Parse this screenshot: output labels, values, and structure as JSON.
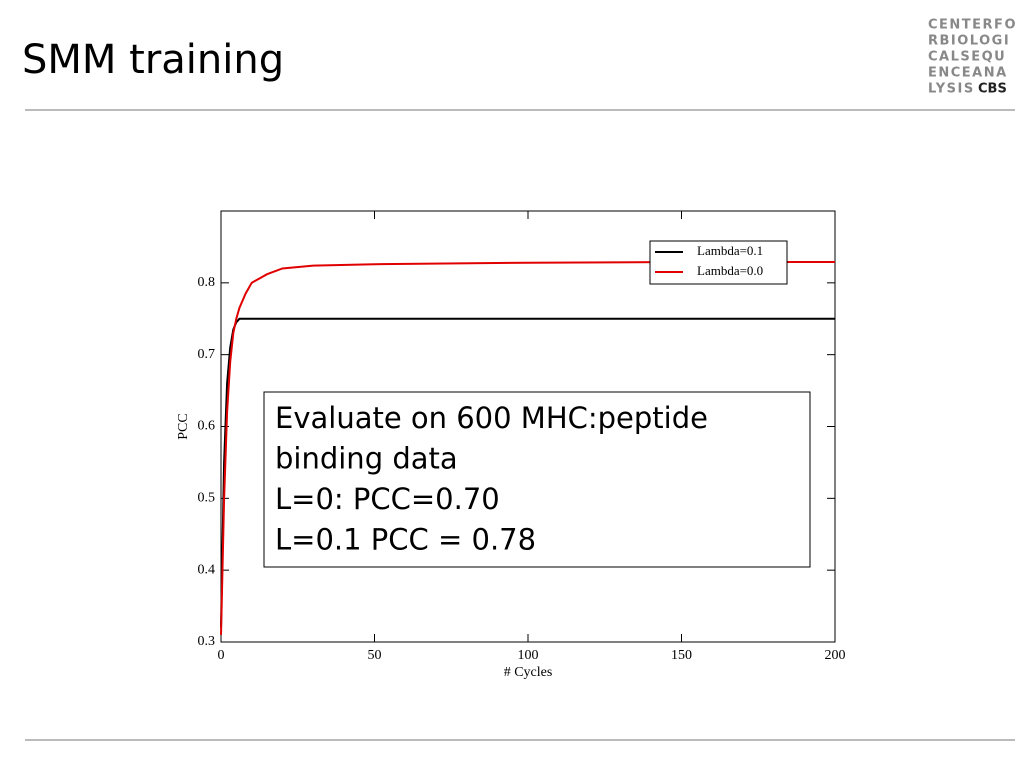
{
  "slide": {
    "title": "SMM training",
    "logo": {
      "lines": [
        "CENTERFO",
        "RBIOLOGI",
        "CALSEQU",
        "ENCEANA",
        "LYSIS"
      ],
      "mark": "CBS"
    }
  },
  "chart_data": {
    "type": "line",
    "x_label": "# Cycles",
    "y_label": "PCC",
    "x": [
      0,
      1,
      2,
      3,
      4,
      5,
      6,
      8,
      10,
      15,
      20,
      30,
      50,
      100,
      150,
      200
    ],
    "series": [
      {
        "name": "Lambda=0.1",
        "color": "#000000",
        "values": [
          0.32,
          0.55,
          0.66,
          0.71,
          0.735,
          0.745,
          0.75,
          0.75,
          0.75,
          0.75,
          0.75,
          0.75,
          0.75,
          0.75,
          0.75,
          0.75
        ]
      },
      {
        "name": "Lambda=0.0",
        "color": "#e00000",
        "values": [
          0.31,
          0.5,
          0.62,
          0.69,
          0.73,
          0.75,
          0.765,
          0.785,
          0.8,
          0.812,
          0.82,
          0.824,
          0.826,
          0.828,
          0.829,
          0.829
        ]
      }
    ],
    "xlim": [
      0,
      200
    ],
    "xticks": [
      0,
      50,
      100,
      150,
      200
    ],
    "ylim": [
      0.3,
      0.9
    ],
    "yticks": [
      0.3,
      0.4,
      0.5,
      0.6,
      0.7,
      0.8
    ],
    "legend": "upper right",
    "annotations": [
      "Evaluate on 600 MHC:peptide",
      "binding data",
      "L=0: PCC=0.70",
      "L=0.1 PCC = 0.78"
    ]
  }
}
